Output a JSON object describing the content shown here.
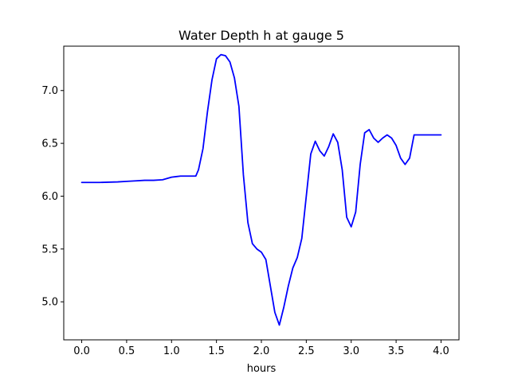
{
  "chart_data": {
    "type": "line",
    "title": "Water Depth h at gauge 5",
    "xlabel": "hours",
    "ylabel": "",
    "xlim": [
      -0.2,
      4.2
    ],
    "ylim": [
      4.64,
      7.42
    ],
    "grid": false,
    "legend": "none",
    "x_ticks": [
      0.0,
      0.5,
      1.0,
      1.5,
      2.0,
      2.5,
      3.0,
      3.5,
      4.0
    ],
    "x_tick_labels": [
      "0.0",
      "0.5",
      "1.0",
      "1.5",
      "2.0",
      "2.5",
      "3.0",
      "3.5",
      "4.0"
    ],
    "y_ticks": [
      5.0,
      5.5,
      6.0,
      6.5,
      7.0
    ],
    "y_tick_labels": [
      "5.0",
      "5.5",
      "6.0",
      "6.5",
      "7.0"
    ],
    "series": [
      {
        "color": "#0000ff",
        "x": [
          0.0,
          0.2,
          0.4,
          0.5,
          0.6,
          0.7,
          0.8,
          0.9,
          1.0,
          1.05,
          1.1,
          1.2,
          1.27,
          1.3,
          1.35,
          1.4,
          1.45,
          1.5,
          1.55,
          1.6,
          1.65,
          1.7,
          1.75,
          1.8,
          1.85,
          1.9,
          1.95,
          2.0,
          2.05,
          2.1,
          2.15,
          2.2,
          2.25,
          2.3,
          2.35,
          2.4,
          2.45,
          2.5,
          2.55,
          2.6,
          2.65,
          2.7,
          2.75,
          2.8,
          2.85,
          2.9,
          2.95,
          3.0,
          3.05,
          3.1,
          3.15,
          3.2,
          3.25,
          3.3,
          3.35,
          3.4,
          3.45,
          3.5,
          3.55,
          3.6,
          3.65,
          3.7,
          3.75,
          3.8,
          3.85,
          3.9,
          3.95,
          4.0
        ],
        "y": [
          6.13,
          6.13,
          6.135,
          6.14,
          6.145,
          6.15,
          6.15,
          6.155,
          6.18,
          6.185,
          6.19,
          6.19,
          6.19,
          6.25,
          6.45,
          6.8,
          7.1,
          7.3,
          7.34,
          7.33,
          7.27,
          7.12,
          6.85,
          6.2,
          5.75,
          5.55,
          5.5,
          5.47,
          5.4,
          5.15,
          4.9,
          4.78,
          4.95,
          5.15,
          5.32,
          5.42,
          5.6,
          6.0,
          6.4,
          6.52,
          6.43,
          6.38,
          6.47,
          6.59,
          6.51,
          6.25,
          5.8,
          5.71,
          5.85,
          6.3,
          6.6,
          6.63,
          6.55,
          6.51,
          6.55,
          6.58,
          6.55,
          6.48,
          6.36,
          6.3,
          6.36,
          6.58,
          6.58,
          6.58,
          6.58,
          6.58,
          6.58,
          6.58
        ]
      }
    ]
  }
}
